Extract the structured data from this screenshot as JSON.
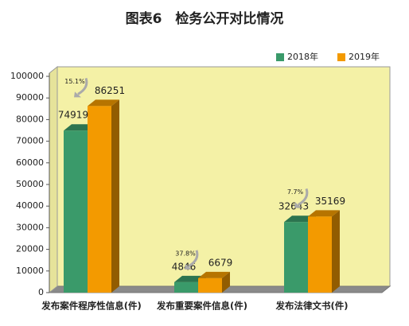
{
  "chart_data": {
    "type": "bar3d",
    "title": "图表6　检务公开对比情况",
    "categories": [
      "发布案件程序性信息(件)",
      "发布重要案件信息(件)",
      "发布法律文书(件)"
    ],
    "series": [
      {
        "name": "2018年",
        "color": "#3a9a6a",
        "values": [
          74919,
          4846,
          32643
        ]
      },
      {
        "name": "2019年",
        "color": "#f39a00",
        "values": [
          86251,
          6679,
          35169
        ]
      }
    ],
    "annotations": [
      "15.1%",
      "37.8%",
      "7.7%"
    ],
    "ylim": [
      0,
      100000
    ],
    "yticks": [
      0,
      10000,
      20000,
      30000,
      40000,
      50000,
      60000,
      70000,
      80000,
      90000,
      100000
    ],
    "legend": "top-right"
  }
}
